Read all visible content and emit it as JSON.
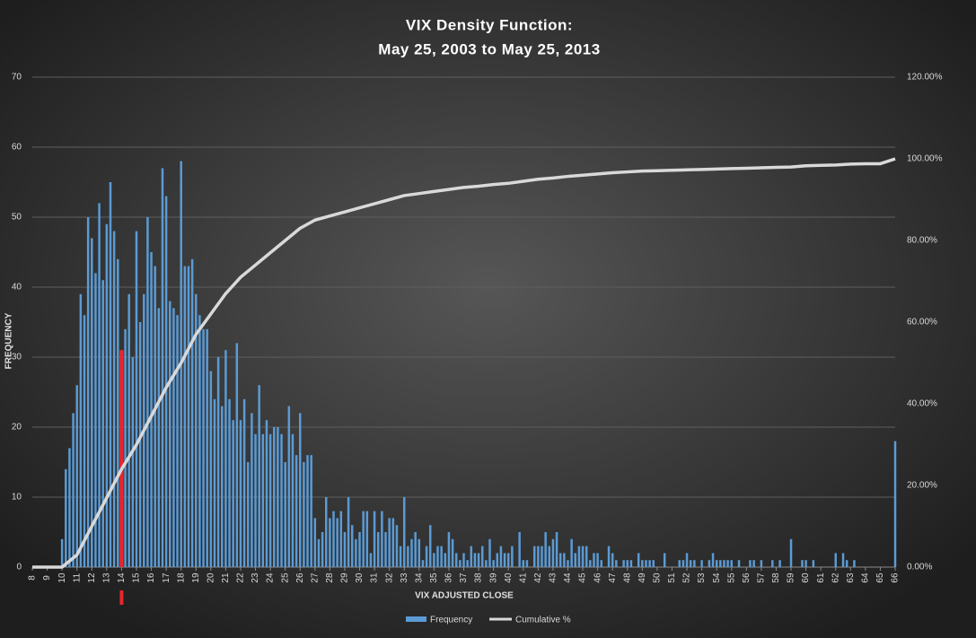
{
  "chart_data": {
    "type": "bar",
    "title": "VIX Density Function:",
    "subtitle": "May 25, 2003 to May 25, 2013",
    "xlabel": "VIX ADJUSTED CLOSE",
    "ylabel": "FREQUENCY",
    "x": [
      8,
      8.25,
      8.5,
      8.75,
      9,
      9.25,
      9.5,
      9.75,
      10,
      10.25,
      10.5,
      10.75,
      11,
      11.25,
      11.5,
      11.75,
      12,
      12.25,
      12.5,
      12.75,
      13,
      13.25,
      13.5,
      13.75,
      14,
      14.25,
      14.5,
      14.75,
      15,
      15.25,
      15.5,
      15.75,
      16,
      16.25,
      16.5,
      16.75,
      17,
      17.25,
      17.5,
      17.75,
      18,
      18.25,
      18.5,
      18.75,
      19,
      19.25,
      19.5,
      19.75,
      20,
      20.25,
      20.5,
      20.75,
      21,
      21.25,
      21.5,
      21.75,
      22,
      22.25,
      22.5,
      22.75,
      23,
      23.25,
      23.5,
      23.75,
      24,
      24.25,
      24.5,
      24.75,
      25,
      25.25,
      25.5,
      25.75,
      26,
      26.25,
      26.5,
      26.75,
      27,
      27.25,
      27.5,
      27.75,
      28,
      28.25,
      28.5,
      28.75,
      29,
      29.25,
      29.5,
      29.75,
      30,
      30.25,
      30.5,
      30.75,
      31,
      31.25,
      31.5,
      31.75,
      32,
      32.25,
      32.5,
      32.75,
      33,
      33.25,
      33.5,
      33.75,
      34,
      34.25,
      34.5,
      34.75,
      35,
      35.25,
      35.5,
      35.75,
      36,
      36.25,
      36.5,
      36.75,
      37,
      37.25,
      37.5,
      37.75,
      38,
      38.25,
      38.5,
      38.75,
      39,
      39.25,
      39.5,
      39.75,
      40,
      40.25,
      40.5,
      40.75,
      41,
      41.25,
      41.5,
      41.75,
      42,
      42.25,
      42.5,
      42.75,
      43,
      43.25,
      43.5,
      43.75,
      44,
      44.25,
      44.5,
      44.75,
      45,
      45.25,
      45.5,
      45.75,
      46,
      46.25,
      46.5,
      46.75,
      47,
      47.25,
      47.5,
      47.75,
      48,
      48.25,
      48.5,
      48.75,
      49,
      49.25,
      49.5,
      49.75,
      50,
      50.25,
      50.5,
      50.75,
      51,
      51.25,
      51.5,
      51.75,
      52,
      52.25,
      52.5,
      52.75,
      53,
      53.25,
      53.5,
      53.75,
      54,
      54.25,
      54.5,
      54.75,
      55,
      55.25,
      55.5,
      55.75,
      56,
      56.25,
      56.5,
      56.75,
      57,
      57.25,
      57.5,
      57.75,
      58,
      58.25,
      58.5,
      58.75,
      59,
      59.25,
      59.5,
      59.75,
      60,
      60.25,
      60.5,
      60.75,
      61,
      61.25,
      61.5,
      61.75,
      62,
      62.25,
      62.5,
      62.75,
      63,
      63.25,
      63.5,
      63.75,
      64,
      64.25,
      64.5,
      64.75,
      65,
      65.25,
      65.5,
      65.75,
      66
    ],
    "series": [
      {
        "name": "Frequency",
        "color": "#5b9bd5",
        "values": [
          0,
          0,
          0,
          0,
          0,
          0,
          0,
          0,
          4,
          14,
          17,
          22,
          26,
          39,
          36,
          50,
          47,
          42,
          52,
          41,
          49,
          55,
          48,
          44,
          31,
          34,
          39,
          30,
          48,
          35,
          39,
          50,
          45,
          43,
          37,
          57,
          53,
          38,
          37,
          36,
          58,
          43,
          43,
          44,
          39,
          36,
          34,
          34,
          28,
          24,
          30,
          23,
          31,
          24,
          21,
          32,
          21,
          24,
          15,
          22,
          19,
          26,
          19,
          21,
          19,
          20,
          20,
          19,
          15,
          23,
          19,
          16,
          22,
          15,
          16,
          16,
          7,
          4,
          5,
          10,
          7,
          8,
          7,
          8,
          5,
          10,
          6,
          4,
          5,
          8,
          8,
          2,
          8,
          5,
          8,
          5,
          7,
          7,
          6,
          3,
          10,
          3,
          4,
          5,
          4,
          1,
          3,
          6,
          2,
          3,
          3,
          2,
          5,
          4,
          2,
          1,
          2,
          1,
          3,
          2,
          2,
          3,
          1,
          4,
          1,
          2,
          3,
          2,
          2,
          3,
          0,
          5,
          1,
          1,
          0,
          3,
          3,
          3,
          5,
          3,
          4,
          5,
          2,
          2,
          1,
          4,
          2,
          3,
          3,
          3,
          1,
          2,
          2,
          1,
          0,
          3,
          2,
          1,
          0,
          1,
          1,
          1,
          0,
          2,
          1,
          1,
          1,
          1,
          0,
          0,
          2,
          0,
          0,
          0,
          1,
          1,
          2,
          1,
          1,
          0,
          1,
          0,
          1,
          2,
          1,
          1,
          1,
          1,
          1,
          0,
          1,
          0,
          0,
          1,
          1,
          0,
          1,
          0,
          0,
          1,
          0,
          1,
          0,
          0,
          4,
          0,
          0,
          1,
          1,
          0,
          1,
          0,
          0,
          0,
          0,
          0,
          2,
          0,
          2,
          1,
          0,
          1,
          0,
          0,
          0,
          0,
          0,
          0,
          0,
          0,
          0,
          0,
          18
        ]
      },
      {
        "name": "Cumulative %",
        "color": "#d9d9d9",
        "axis": "y2",
        "x": [
          8,
          9,
          10,
          11,
          12,
          13,
          14,
          15,
          16,
          17,
          18,
          19,
          20,
          21,
          22,
          23,
          24,
          25,
          26,
          27,
          28,
          29,
          30,
          31,
          32,
          33,
          34,
          35,
          36,
          37,
          38,
          39,
          40,
          41,
          42,
          43,
          44,
          45,
          46,
          47,
          48,
          49,
          50,
          51,
          52,
          53,
          54,
          55,
          56,
          57,
          58,
          59,
          60,
          61,
          62,
          63,
          64,
          65,
          66
        ],
        "values": [
          0,
          0,
          0,
          3,
          10,
          17,
          24,
          30,
          37,
          44,
          50,
          57,
          62,
          67,
          71,
          74,
          77,
          80,
          83,
          85,
          86,
          87,
          88,
          89,
          90,
          91,
          91.5,
          92,
          92.5,
          93,
          93.3,
          93.7,
          94,
          94.5,
          95,
          95.3,
          95.7,
          96,
          96.3,
          96.6,
          96.8,
          97,
          97.1,
          97.2,
          97.3,
          97.4,
          97.5,
          97.6,
          97.7,
          97.8,
          97.9,
          98,
          98.3,
          98.4,
          98.5,
          98.7,
          98.8,
          98.8,
          100
        ]
      }
    ],
    "highlight": {
      "x": 14,
      "color": "#e8262e"
    },
    "xlim": [
      8,
      66
    ],
    "xticks": [
      8,
      9,
      10,
      11,
      12,
      13,
      14,
      15,
      16,
      17,
      18,
      19,
      20,
      21,
      22,
      23,
      24,
      25,
      26,
      27,
      28,
      29,
      30,
      31,
      32,
      33,
      34,
      35,
      36,
      37,
      38,
      39,
      40,
      41,
      42,
      43,
      44,
      45,
      46,
      47,
      48,
      49,
      50,
      51,
      52,
      53,
      54,
      55,
      56,
      57,
      58,
      59,
      60,
      61,
      62,
      63,
      64,
      65,
      66
    ],
    "ylim": [
      0,
      70
    ],
    "yticks": [
      0,
      10,
      20,
      30,
      40,
      50,
      60,
      70
    ],
    "y2lim": [
      0,
      120
    ],
    "y2ticks": [
      {
        "value": 0,
        "label": "0.00%"
      },
      {
        "value": 20,
        "label": "20.00%"
      },
      {
        "value": 40,
        "label": "40.00%"
      },
      {
        "value": 60,
        "label": "60.00%"
      },
      {
        "value": 80,
        "label": "80.00%"
      },
      {
        "value": 100,
        "label": "100.00%"
      },
      {
        "value": 120,
        "label": "120.00%"
      }
    ],
    "grid": true,
    "legend": "bottom"
  }
}
